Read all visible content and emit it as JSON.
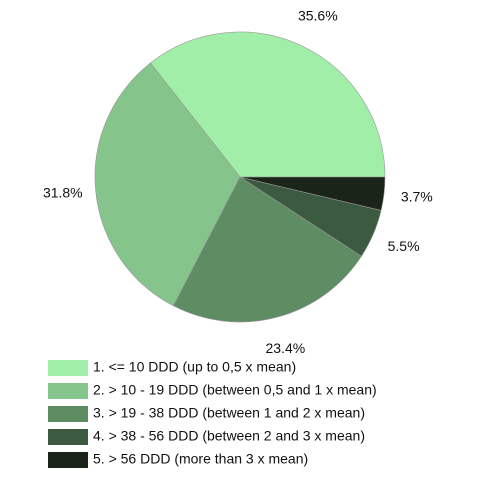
{
  "chart_data": {
    "type": "pie",
    "categories": [
      "1. <= 10 DDD (up to 0,5 x mean)",
      "2. > 10 - 19 DDD (between 0,5 and 1 x mean)",
      "3. > 19 - 38 DDD (between 1 and 2 x mean)",
      "4. > 38 - 56 DDD (between 2 and 3 x mean)",
      "5. > 56 DDD (more than 3 x mean)"
    ],
    "values": [
      35.6,
      31.8,
      23.4,
      5.5,
      3.7
    ],
    "value_labels": [
      "35.6%",
      "31.8%",
      "23.4%",
      "5.5%",
      "3.7%"
    ],
    "colors": [
      "#a0eea8",
      "#85c48b",
      "#5e8c63",
      "#3c5a40",
      "#1a2419"
    ],
    "legend": "bottom"
  }
}
